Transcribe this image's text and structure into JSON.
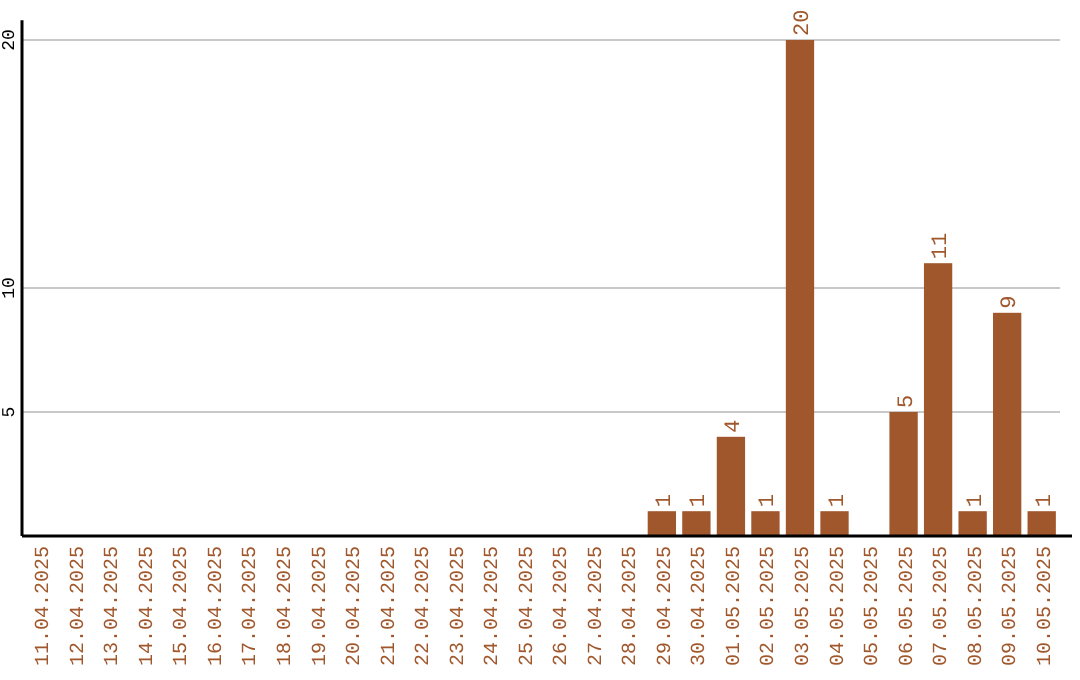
{
  "chart_data": {
    "type": "bar",
    "categories": [
      "11.04.2025",
      "12.04.2025",
      "13.04.2025",
      "14.04.2025",
      "15.04.2025",
      "16.04.2025",
      "17.04.2025",
      "18.04.2025",
      "19.04.2025",
      "20.04.2025",
      "21.04.2025",
      "22.04.2025",
      "23.04.2025",
      "24.04.2025",
      "25.04.2025",
      "26.04.2025",
      "27.04.2025",
      "28.04.2025",
      "29.04.2025",
      "30.04.2025",
      "01.05.2025",
      "02.05.2025",
      "03.05.2025",
      "04.05.2025",
      "05.05.2025",
      "06.05.2025",
      "07.05.2025",
      "08.05.2025",
      "09.05.2025",
      "10.05.2025"
    ],
    "values": [
      null,
      null,
      null,
      null,
      null,
      null,
      null,
      null,
      null,
      null,
      null,
      null,
      null,
      null,
      null,
      null,
      null,
      null,
      1,
      1,
      4,
      1,
      20,
      1,
      null,
      5,
      11,
      1,
      9,
      1
    ],
    "color": "#a0572b",
    "ylim": [
      0,
      20.8
    ],
    "yticks": [
      5,
      10,
      20
    ],
    "grid": "y",
    "data_labels": true
  }
}
